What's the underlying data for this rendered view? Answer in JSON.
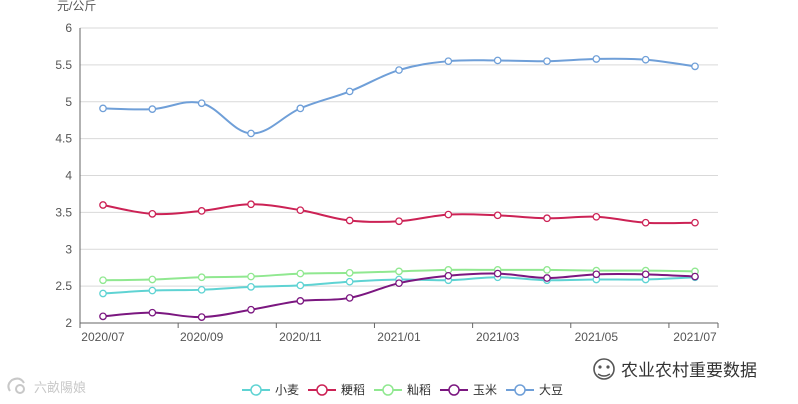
{
  "chart_data": {
    "type": "line",
    "unit_label": "元/公斤",
    "ylim": [
      2,
      6
    ],
    "y_ticks": [
      "2",
      "2.5",
      "3",
      "3.5",
      "4",
      "4.5",
      "5",
      "5.5",
      "6"
    ],
    "x_tick_labels": [
      "2020/07",
      "2020/09",
      "2020/11",
      "2021/01",
      "2021/03",
      "2021/05",
      "2021/07"
    ],
    "categories": [
      "2020/07",
      "2020/08",
      "2020/09",
      "2020/10",
      "2020/11",
      "2020/12",
      "2021/01",
      "2021/02",
      "2021/03",
      "2021/04",
      "2021/05",
      "2021/06",
      "2021/07"
    ],
    "grid": true,
    "legend_position": "bottom-center",
    "series": [
      {
        "name": "小麦",
        "color": "#5fd3d3",
        "values": [
          2.4,
          2.44,
          2.45,
          2.49,
          2.51,
          2.56,
          2.59,
          2.58,
          2.62,
          2.58,
          2.59,
          2.59,
          2.62
        ]
      },
      {
        "name": "粳稻",
        "color": "#cc2255",
        "values": [
          3.6,
          3.48,
          3.52,
          3.61,
          3.53,
          3.39,
          3.38,
          3.47,
          3.46,
          3.42,
          3.44,
          3.36,
          3.36
        ]
      },
      {
        "name": "籼稻",
        "color": "#90e890",
        "values": [
          2.58,
          2.59,
          2.62,
          2.63,
          2.67,
          2.68,
          2.7,
          2.72,
          2.72,
          2.72,
          2.71,
          2.71,
          2.7
        ]
      },
      {
        "name": "玉米",
        "color": "#7b1780",
        "values": [
          2.09,
          2.14,
          2.08,
          2.18,
          2.3,
          2.34,
          2.54,
          2.64,
          2.67,
          2.61,
          2.66,
          2.66,
          2.63
        ]
      },
      {
        "name": "大豆",
        "color": "#6f9fd8",
        "values": [
          4.91,
          4.9,
          4.98,
          4.57,
          4.91,
          5.14,
          5.43,
          5.55,
          5.56,
          5.55,
          5.58,
          5.57,
          5.48
        ]
      }
    ]
  },
  "watermark": {
    "left_text": "六畝陽娘",
    "right_text": "农业农村重要数据"
  },
  "icons": {
    "left_logo": "logo-icon",
    "right_logo": "wechat-icon"
  }
}
